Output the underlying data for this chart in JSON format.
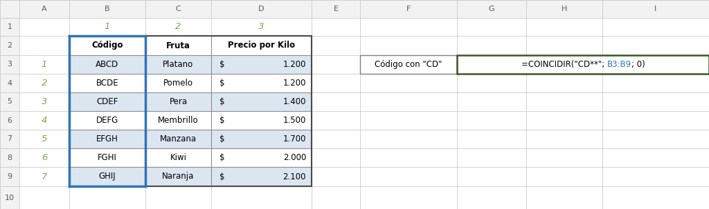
{
  "bg_color": "#ffffff",
  "grid_color": "#c0c0c0",
  "header_bg": "#e8e8e8",
  "green_color": "#70ad47",
  "blue_border": "#2e75b6",
  "light_blue_bg": "#dce6f1",
  "col_labels": [
    "A",
    "B",
    "C",
    "D",
    "E",
    "F",
    "G",
    "H",
    "I"
  ],
  "table_headers": [
    "Código",
    "Fruta",
    "Precio por Kilo"
  ],
  "table_data": [
    [
      "ABCD",
      "Platano",
      "$",
      "1.200"
    ],
    [
      "BCDE",
      "Pomelo",
      "$",
      "1.200"
    ],
    [
      "CDEF",
      "Pera",
      "$",
      "1.400"
    ],
    [
      "DEFG",
      "Membrillo",
      "$",
      "1.500"
    ],
    [
      "EFGH",
      "Manzana",
      "$",
      "1.700"
    ],
    [
      "FGHI",
      "Kiwi",
      "$",
      "2.000"
    ],
    [
      "GHIJ",
      "Naranja",
      "$",
      "2.100"
    ]
  ],
  "formula_label": "Código con \"CD\"",
  "formula_black1": "=COINCIDIR(\"CD**\"; ",
  "formula_blue": "B3:B9",
  "formula_black2": "; 0)"
}
